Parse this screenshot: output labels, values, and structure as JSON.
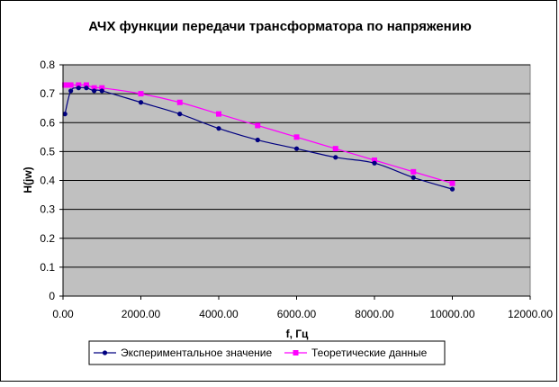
{
  "chart_data": {
    "type": "line",
    "title": "АЧХ функции передачи трансформатора по напряжению",
    "xlabel": "f, Гц",
    "ylabel": "H(jw)",
    "xlim": [
      0,
      12000
    ],
    "ylim": [
      0,
      0.8
    ],
    "grid": true,
    "legend_position": "bottom",
    "x_ticks": [
      "0.00",
      "2000.00",
      "4000.00",
      "6000.00",
      "8000.00",
      "10000.00",
      "12000.00"
    ],
    "y_ticks": [
      "0",
      "0.1",
      "0.2",
      "0.3",
      "0.4",
      "0.5",
      "0.6",
      "0.7",
      "0.8"
    ],
    "series": [
      {
        "name": "Экспериментальное значение",
        "color": "#000080",
        "marker": "circle",
        "x": [
          50,
          200,
          400,
          600,
          800,
          1000,
          2000,
          3000,
          4000,
          5000,
          6000,
          7000,
          8000,
          9000,
          10000
        ],
        "y": [
          0.63,
          0.71,
          0.72,
          0.72,
          0.71,
          0.71,
          0.67,
          0.63,
          0.58,
          0.54,
          0.51,
          0.48,
          0.46,
          0.41,
          0.37
        ]
      },
      {
        "name": "Теоретические данные",
        "color": "#FF00FF",
        "marker": "square",
        "x": [
          50,
          100,
          200,
          400,
          600,
          800,
          1000,
          2000,
          3000,
          4000,
          5000,
          6000,
          7000,
          8000,
          9000,
          10000
        ],
        "y": [
          0.73,
          0.73,
          0.73,
          0.73,
          0.73,
          0.72,
          0.72,
          0.7,
          0.67,
          0.63,
          0.59,
          0.55,
          0.51,
          0.47,
          0.43,
          0.39
        ]
      }
    ]
  }
}
